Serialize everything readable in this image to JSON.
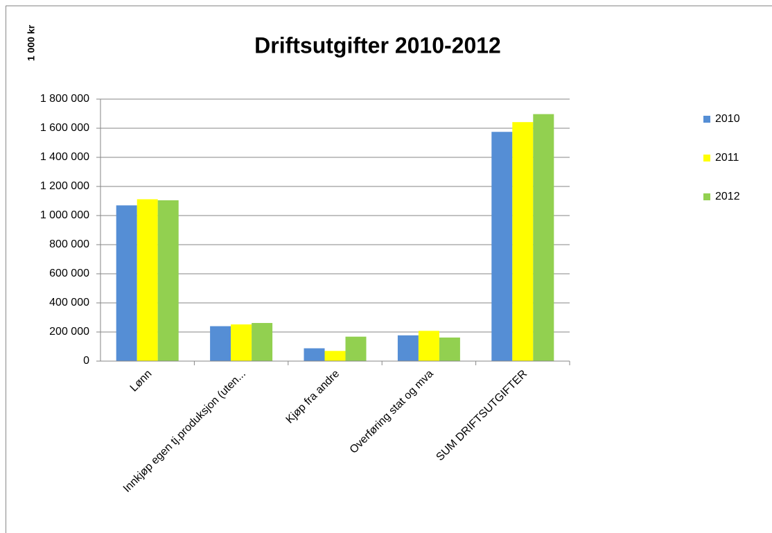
{
  "chart_data": {
    "type": "bar",
    "title": "Driftsutgifter   2010-2012",
    "y_label": "1 000 kr",
    "categories": [
      "Lønn",
      "Innkjøp egen tj.produksjon (uten...",
      "Kjøp fra andre",
      "Overføring stat og mva",
      "SUM DRIFTSUTGIFTER"
    ],
    "series": [
      {
        "name": "2010",
        "color": "#558ed5",
        "values": [
          1070000,
          240000,
          88000,
          177000,
          1575000
        ]
      },
      {
        "name": "2011",
        "color": "#ffff00",
        "values": [
          1112000,
          252000,
          70000,
          208000,
          1642000
        ]
      },
      {
        "name": "2012",
        "color": "#92d050",
        "values": [
          1105000,
          262000,
          168000,
          162000,
          1697000
        ]
      }
    ],
    "ylim": [
      0,
      1800000
    ],
    "yticks": [
      0,
      {
        "value": 200000,
        "label": "200 000"
      },
      {
        "value": 400000,
        "label": "400 000"
      },
      {
        "value": 600000,
        "label": "600 000"
      },
      {
        "value": 800000,
        "label": "800 000"
      },
      {
        "value": 1000000,
        "label": "1 000 000"
      },
      {
        "value": 1200000,
        "label": "1 200 000"
      },
      {
        "value": 1400000,
        "label": "1 400 000"
      },
      {
        "value": 1600000,
        "label": "1 600 000"
      },
      {
        "value": 1800000,
        "label": "1 800 000"
      }
    ],
    "grid": true,
    "legend": "right"
  }
}
